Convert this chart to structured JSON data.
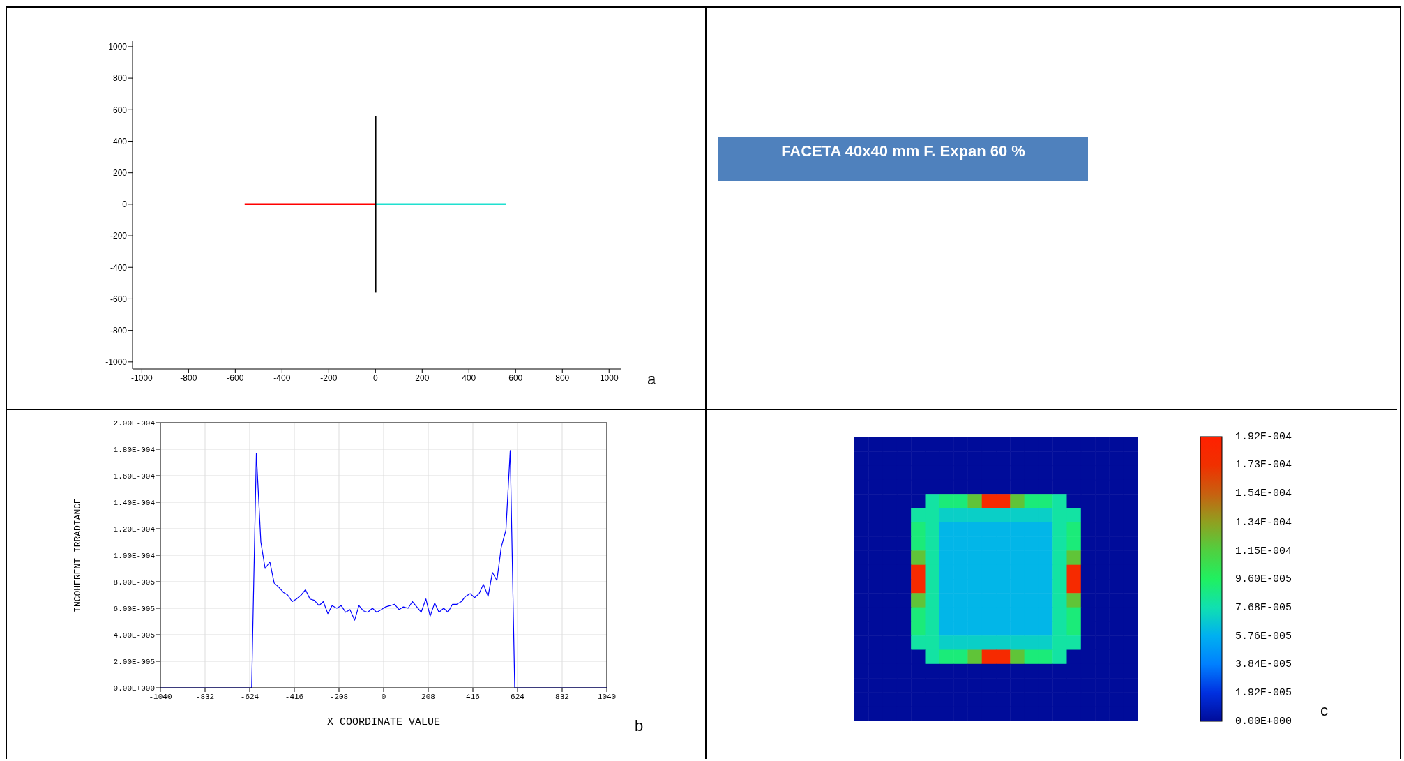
{
  "chart_data": [
    {
      "type": "line",
      "xlim": [
        -1040,
        1050
      ],
      "ylim": [
        -1045,
        1035
      ],
      "xticks": [
        -1000,
        -800,
        -600,
        -400,
        -200,
        0,
        200,
        400,
        600,
        800,
        1000
      ],
      "yticks": [
        -1000,
        -800,
        -600,
        -400,
        -200,
        0,
        200,
        400,
        600,
        800,
        1000
      ],
      "annotations": [
        "a"
      ],
      "series": [
        {
          "color": "#ff0000",
          "x": [
            -560,
            0
          ],
          "values": [
            0,
            0
          ]
        },
        {
          "color": "#20e0d0",
          "x": [
            0,
            560
          ],
          "values": [
            0,
            0
          ]
        },
        {
          "color": "#000000",
          "x": [
            0,
            0
          ],
          "values": [
            -560,
            560
          ]
        }
      ]
    },
    {
      "type": "other",
      "title": "FACETA 40x40 mm F. Expan 60 %"
    },
    {
      "type": "line",
      "xlabel": "X COORDINATE VALUE",
      "ylabel": "INCOHERENT IRRADIANCE",
      "color": "#0000ff",
      "grid": true,
      "annotations": [
        "b"
      ],
      "xlim": [
        -1040,
        1040
      ],
      "xticks": [
        -1040,
        -832,
        -624,
        -416,
        -208,
        0,
        208,
        416,
        624,
        832,
        1040
      ],
      "ylim": [
        0,
        0.0002
      ],
      "yticks": [
        {
          "value": 0,
          "label": "0.00E+000"
        },
        {
          "value": 2e-05,
          "label": "2.00E-005"
        },
        {
          "value": 4e-05,
          "label": "4.00E-005"
        },
        {
          "value": 6e-05,
          "label": "6.00E-005"
        },
        {
          "value": 8e-05,
          "label": "8.00E-005"
        },
        {
          "value": 0.0001,
          "label": "1.00E-004"
        },
        {
          "value": 0.00012,
          "label": "1.20E-004"
        },
        {
          "value": 0.00014,
          "label": "1.40E-004"
        },
        {
          "value": 0.00016,
          "label": "1.60E-004"
        },
        {
          "value": 0.00018,
          "label": "1.80E-004"
        },
        {
          "value": 0.0002,
          "label": "2.00E-004"
        }
      ],
      "x": [
        -1040,
        -615,
        -593,
        -572,
        -552,
        -530,
        -510,
        -489,
        -467,
        -447,
        -426,
        -406,
        -384,
        -364,
        -343,
        -323,
        -301,
        -281,
        -260,
        -240,
        -218,
        -198,
        -177,
        -157,
        -135,
        -115,
        -94,
        -74,
        -52,
        -32,
        -11,
        9,
        31,
        51,
        72,
        92,
        114,
        134,
        155,
        175,
        197,
        217,
        238,
        258,
        280,
        300,
        321,
        341,
        362,
        382,
        404,
        424,
        445,
        465,
        487,
        507,
        528,
        548,
        570,
        590,
        611,
        1040
      ],
      "values": [
        0,
        0,
        0.000177,
        0.00011,
        9e-05,
        9.5e-05,
        7.9e-05,
        7.6e-05,
        7.2e-05,
        7e-05,
        6.5e-05,
        6.7e-05,
        7e-05,
        7.4e-05,
        6.7e-05,
        6.6e-05,
        6.2e-05,
        6.5e-05,
        5.6e-05,
        6.2e-05,
        6e-05,
        6.2e-05,
        5.7e-05,
        5.9e-05,
        5.1e-05,
        6.2e-05,
        5.8e-05,
        5.7e-05,
        6e-05,
        5.7e-05,
        5.9e-05,
        6.1e-05,
        6.2e-05,
        6.3e-05,
        5.9e-05,
        6.1e-05,
        6e-05,
        6.5e-05,
        6.1e-05,
        5.7e-05,
        6.7e-05,
        5.4e-05,
        6.4e-05,
        5.7e-05,
        6e-05,
        5.7e-05,
        6.3e-05,
        6.3e-05,
        6.5e-05,
        6.9e-05,
        7.1e-05,
        6.8e-05,
        7.1e-05,
        7.8e-05,
        6.9e-05,
        8.7e-05,
        8.1e-05,
        0.000106,
        0.000119,
        0.000179,
        0,
        0
      ]
    },
    {
      "type": "heatmap",
      "annotations": [
        "c"
      ],
      "categories": [
        null,
        null,
        null,
        null,
        null,
        null,
        null,
        null,
        null,
        null,
        null,
        null,
        null,
        null,
        null,
        null,
        null,
        null,
        null,
        null
      ],
      "y_categories": [
        null,
        null,
        null,
        null,
        null,
        null,
        null,
        null,
        null,
        null,
        null,
        null,
        null,
        null,
        null,
        null,
        null,
        null,
        null,
        null
      ],
      "clim": [
        0,
        0.000192
      ],
      "cticks": [
        {
          "value": 0,
          "label": "0.00E+000"
        },
        {
          "value": 1.92e-05,
          "label": "1.92E-005"
        },
        {
          "value": 3.84e-05,
          "label": "3.84E-005"
        },
        {
          "value": 5.76e-05,
          "label": "5.76E-005"
        },
        {
          "value": 7.68e-05,
          "label": "7.68E-005"
        },
        {
          "value": 9.6e-05,
          "label": "9.60E-005"
        },
        {
          "value": 0.000115,
          "label": "1.15E-004"
        },
        {
          "value": 0.000134,
          "label": "1.34E-004"
        },
        {
          "value": 0.000154,
          "label": "1.54E-004"
        },
        {
          "value": 0.000173,
          "label": "1.73E-004"
        },
        {
          "value": 0.000192,
          "label": "1.92E-004"
        }
      ],
      "cells": [
        [
          0,
          0,
          0,
          0,
          0,
          0,
          0,
          0,
          0,
          0,
          0,
          0,
          0,
          0,
          0,
          0,
          0,
          0,
          0,
          0
        ],
        [
          0,
          0,
          0,
          0,
          0,
          0,
          0,
          0,
          0,
          0,
          0,
          0,
          0,
          0,
          0,
          0,
          0,
          0,
          0,
          0
        ],
        [
          0,
          0,
          0,
          0,
          0,
          0,
          0,
          0,
          0,
          0,
          0,
          0,
          0,
          0,
          0,
          0,
          0,
          0,
          0,
          0
        ],
        [
          0,
          0,
          0,
          0,
          0,
          0,
          0,
          0,
          0,
          0,
          0,
          0,
          0,
          0,
          0,
          0,
          0,
          0,
          0,
          0
        ],
        [
          0,
          0,
          0,
          0,
          0,
          8e-05,
          9e-05,
          9e-05,
          0.00012,
          0.00018,
          0.00018,
          0.00012,
          9e-05,
          9e-05,
          8e-05,
          0,
          0,
          0,
          0,
          0
        ],
        [
          0,
          0,
          0,
          0,
          8e-05,
          8e-05,
          7e-05,
          7e-05,
          7e-05,
          7e-05,
          7e-05,
          7e-05,
          7e-05,
          7e-05,
          8e-05,
          8e-05,
          0,
          0,
          0,
          0
        ],
        [
          0,
          0,
          0,
          0,
          9e-05,
          8e-05,
          6e-05,
          6e-05,
          6e-05,
          6e-05,
          6e-05,
          6e-05,
          6e-05,
          6e-05,
          8e-05,
          9e-05,
          0,
          0,
          0,
          0
        ],
        [
          0,
          0,
          0,
          0,
          9e-05,
          8e-05,
          6e-05,
          6e-05,
          6e-05,
          6e-05,
          6e-05,
          6e-05,
          6e-05,
          6e-05,
          8e-05,
          9e-05,
          0,
          0,
          0,
          0
        ],
        [
          0,
          0,
          0,
          0,
          0.00012,
          8e-05,
          6e-05,
          6e-05,
          6e-05,
          6e-05,
          6e-05,
          6e-05,
          6e-05,
          6e-05,
          8e-05,
          0.00012,
          0,
          0,
          0,
          0
        ],
        [
          0,
          0,
          0,
          0,
          0.00018,
          8e-05,
          6e-05,
          6e-05,
          6e-05,
          6e-05,
          6e-05,
          6e-05,
          6e-05,
          6e-05,
          8e-05,
          0.00018,
          0,
          0,
          0,
          0
        ],
        [
          0,
          0,
          0,
          0,
          0.00018,
          8e-05,
          6e-05,
          6e-05,
          6e-05,
          6e-05,
          6e-05,
          6e-05,
          6e-05,
          6e-05,
          8e-05,
          0.00018,
          0,
          0,
          0,
          0
        ],
        [
          0,
          0,
          0,
          0,
          0.00012,
          8e-05,
          6e-05,
          6e-05,
          6e-05,
          6e-05,
          6e-05,
          6e-05,
          6e-05,
          6e-05,
          8e-05,
          0.00012,
          0,
          0,
          0,
          0
        ],
        [
          0,
          0,
          0,
          0,
          9e-05,
          8e-05,
          6e-05,
          6e-05,
          6e-05,
          6e-05,
          6e-05,
          6e-05,
          6e-05,
          6e-05,
          8e-05,
          9e-05,
          0,
          0,
          0,
          0
        ],
        [
          0,
          0,
          0,
          0,
          9e-05,
          8e-05,
          6e-05,
          6e-05,
          6e-05,
          6e-05,
          6e-05,
          6e-05,
          6e-05,
          6e-05,
          8e-05,
          9e-05,
          0,
          0,
          0,
          0
        ],
        [
          0,
          0,
          0,
          0,
          8e-05,
          8e-05,
          7e-05,
          7e-05,
          7e-05,
          7e-05,
          7e-05,
          7e-05,
          7e-05,
          7e-05,
          8e-05,
          8e-05,
          0,
          0,
          0,
          0
        ],
        [
          0,
          0,
          0,
          0,
          0,
          8e-05,
          9e-05,
          9e-05,
          0.00012,
          0.00018,
          0.00018,
          0.00012,
          9e-05,
          9e-05,
          8e-05,
          0,
          0,
          0,
          0,
          0
        ],
        [
          0,
          0,
          0,
          0,
          0,
          0,
          0,
          0,
          0,
          0,
          0,
          0,
          0,
          0,
          0,
          0,
          0,
          0,
          0,
          0
        ],
        [
          0,
          0,
          0,
          0,
          0,
          0,
          0,
          0,
          0,
          0,
          0,
          0,
          0,
          0,
          0,
          0,
          0,
          0,
          0,
          0
        ],
        [
          0,
          0,
          0,
          0,
          0,
          0,
          0,
          0,
          0,
          0,
          0,
          0,
          0,
          0,
          0,
          0,
          0,
          0,
          0,
          0
        ],
        [
          0,
          0,
          0,
          0,
          0,
          0,
          0,
          0,
          0,
          0,
          0,
          0,
          0,
          0,
          0,
          0,
          0,
          0,
          0,
          0
        ]
      ]
    }
  ]
}
